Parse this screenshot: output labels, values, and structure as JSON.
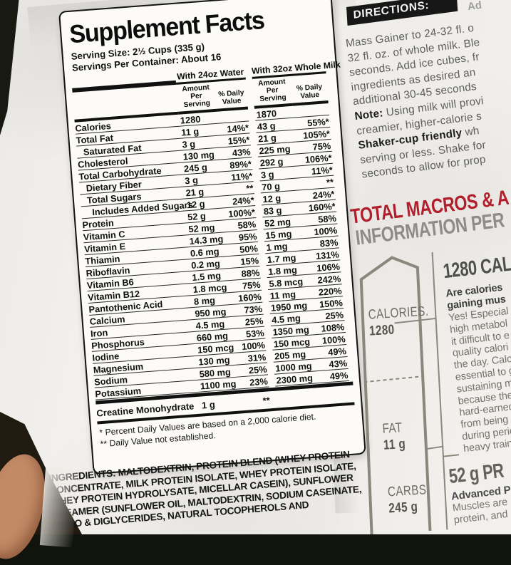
{
  "supplement_label": {
    "title": "Supplement Facts",
    "serving_size": "Serving Size: 2½ Cups (335 g)",
    "servings_per_container": "Servings Per Container: About 16",
    "column_groups": {
      "water": "With 24oz Water",
      "milk": "With 32oz Whole Milk"
    },
    "subheaders": {
      "amount": "Amount Per Serving",
      "daily_value": "% Daily Value"
    },
    "rows": [
      {
        "name": "Calories",
        "indent": 0,
        "water_amount": "1280",
        "water_dv": "",
        "milk_amount": "1870",
        "milk_dv": ""
      },
      {
        "name": "Total Fat",
        "indent": 0,
        "water_amount": "11 g",
        "water_dv": "14%*",
        "milk_amount": "43 g",
        "milk_dv": "55%*"
      },
      {
        "name": "Saturated Fat",
        "indent": 1,
        "water_amount": "3 g",
        "water_dv": "15%*",
        "milk_amount": "21 g",
        "milk_dv": "105%*"
      },
      {
        "name": "Cholesterol",
        "indent": 0,
        "water_amount": "130 mg",
        "water_dv": "43%",
        "milk_amount": "225 mg",
        "milk_dv": "75%"
      },
      {
        "name": "Total Carbohydrate",
        "indent": 0,
        "water_amount": "245 g",
        "water_dv": "89%*",
        "milk_amount": "292 g",
        "milk_dv": "106%*"
      },
      {
        "name": "Dietary Fiber",
        "indent": 1,
        "water_amount": "3 g",
        "water_dv": "11%*",
        "milk_amount": "3 g",
        "milk_dv": "11%*"
      },
      {
        "name": "Total Sugars",
        "indent": 1,
        "water_amount": "21 g",
        "water_dv": "**",
        "milk_amount": "70 g",
        "milk_dv": "**"
      },
      {
        "name": "Includes Added Sugars",
        "indent": 2,
        "water_amount": "12 g",
        "water_dv": "24%*",
        "milk_amount": "12 g",
        "milk_dv": "24%*"
      },
      {
        "name": "Protein",
        "indent": 0,
        "water_amount": "52 g",
        "water_dv": "100%*",
        "milk_amount": "83 g",
        "milk_dv": "160%*"
      },
      {
        "name": "Vitamin C",
        "indent": 0,
        "water_amount": "52 mg",
        "water_dv": "58%",
        "milk_amount": "52 mg",
        "milk_dv": "58%"
      },
      {
        "name": "Vitamin E",
        "indent": 0,
        "water_amount": "14.3 mg",
        "water_dv": "95%",
        "milk_amount": "15 mg",
        "milk_dv": "100%"
      },
      {
        "name": "Thiamin",
        "indent": 0,
        "water_amount": "0.6 mg",
        "water_dv": "50%",
        "milk_amount": "1 mg",
        "milk_dv": "83%"
      },
      {
        "name": "Riboflavin",
        "indent": 0,
        "water_amount": "0.2 mg",
        "water_dv": "15%",
        "milk_amount": "1.7 mg",
        "milk_dv": "131%"
      },
      {
        "name": "Vitamin B6",
        "indent": 0,
        "water_amount": "1.5 mg",
        "water_dv": "88%",
        "milk_amount": "1.8 mg",
        "milk_dv": "106%"
      },
      {
        "name": "Vitamin B12",
        "indent": 0,
        "water_amount": "1.8 mcg",
        "water_dv": "75%",
        "milk_amount": "5.8 mcg",
        "milk_dv": "242%"
      },
      {
        "name": "Pantothenic Acid",
        "indent": 0,
        "water_amount": "8 mg",
        "water_dv": "160%",
        "milk_amount": "11 mg",
        "milk_dv": "220%"
      },
      {
        "name": "Calcium",
        "indent": 0,
        "water_amount": "950 mg",
        "water_dv": "73%",
        "milk_amount": "1950 mg",
        "milk_dv": "150%"
      },
      {
        "name": "Iron",
        "indent": 0,
        "water_amount": "4.5 mg",
        "water_dv": "25%",
        "milk_amount": "4.5 mg",
        "milk_dv": "25%"
      },
      {
        "name": "Phosphorus",
        "indent": 0,
        "water_amount": "660 mg",
        "water_dv": "53%",
        "milk_amount": "1350 mg",
        "milk_dv": "108%"
      },
      {
        "name": "Iodine",
        "indent": 0,
        "water_amount": "150 mcg",
        "water_dv": "100%",
        "milk_amount": "150 mcg",
        "milk_dv": "100%"
      },
      {
        "name": "Magnesium",
        "indent": 0,
        "water_amount": "130 mg",
        "water_dv": "31%",
        "milk_amount": "205 mg",
        "milk_dv": "49%"
      },
      {
        "name": "Sodium",
        "indent": 0,
        "water_amount": "580 mg",
        "water_dv": "25%",
        "milk_amount": "1000 mg",
        "milk_dv": "43%"
      },
      {
        "name": "Potassium",
        "indent": 0,
        "water_amount": "1100 mg",
        "water_dv": "23%",
        "milk_amount": "2300 mg",
        "milk_dv": "49%"
      }
    ],
    "supplemental_row": {
      "name": "Creatine Monohydrate",
      "amount": "1 g",
      "dv": "**"
    },
    "footnotes": [
      "* Percent Daily Values are based on a 2,000 calorie diet.",
      "** Daily Value not established."
    ]
  },
  "ingredients_lines": [
    "INGREDIENTS: MALTODEXTRIN, PROTEIN BLEND (WHEY PROTEIN",
    "CONCENTRATE, MILK PROTEIN ISOLATE, WHEY PROTEIN ISOLATE,",
    "WHEY PROTEIN HYDROLYSATE, MICELLAR CASEIN), SUNFLOWER",
    "CREAMER (SUNFLOWER OIL, MALTODEXTRIN, SODIUM CASEINATE,",
    "MONO & DIGLYCERIDES, NATURAL TOCOPHEROLS AND"
  ],
  "directions": {
    "heading": "DIRECTIONS:",
    "heading_fragment": "Ad",
    "lines": [
      {
        "bold": "",
        "text": "Mass Gainer to 24-32 fl. o"
      },
      {
        "bold": "",
        "text": "32 fl. oz. of whole milk. Ble"
      },
      {
        "bold": "",
        "text": "seconds. Add ice cubes, fr"
      },
      {
        "bold": "",
        "text": "ingredients as desired an"
      },
      {
        "bold": "",
        "text": "additional 30-45 seconds"
      },
      {
        "bold": "Note:",
        "text": " Using milk will provi"
      },
      {
        "bold": "",
        "text": "creamier, higher-calorie s"
      },
      {
        "bold": "Shaker-cup friendly",
        "text": " wh"
      },
      {
        "bold": "",
        "text": "serving or less. Shake for"
      },
      {
        "bold": "",
        "text": "seconds to allow for prop"
      }
    ]
  },
  "macros": {
    "heading_line1": "TOTAL MACROS & A",
    "heading_line2": "INFORMATION PER",
    "gauge_sections": [
      {
        "label": "CALORIES.",
        "value": "1280"
      },
      {
        "label": "FAT",
        "value": "11 g"
      },
      {
        "label": "CARBS",
        "value": "245 g"
      }
    ],
    "calories_block": {
      "heading": "1280 CAL",
      "bold_lines": [
        "Are calories",
        "gaining mus"
      ],
      "lines": [
        "Yes! Especial",
        "high metabol",
        "it difficult to e",
        "quality calori",
        "the day. Calor",
        "essential to g",
        "sustaining m",
        "because they",
        "hard-earned",
        "from being u",
        "during period",
        "heavy trainin"
      ]
    },
    "protein_block": {
      "heading": "52 g PR",
      "subheading": "Advanced P",
      "lines": [
        "Muscles are",
        "protein, and"
      ]
    }
  },
  "colors": {
    "accent_red": "#b01f2b",
    "heading_gray": "#8d8c8a",
    "gauge_gray": "#8a877d",
    "body_text_gray": "#5d5d5c",
    "label_ink": "#111111"
  }
}
